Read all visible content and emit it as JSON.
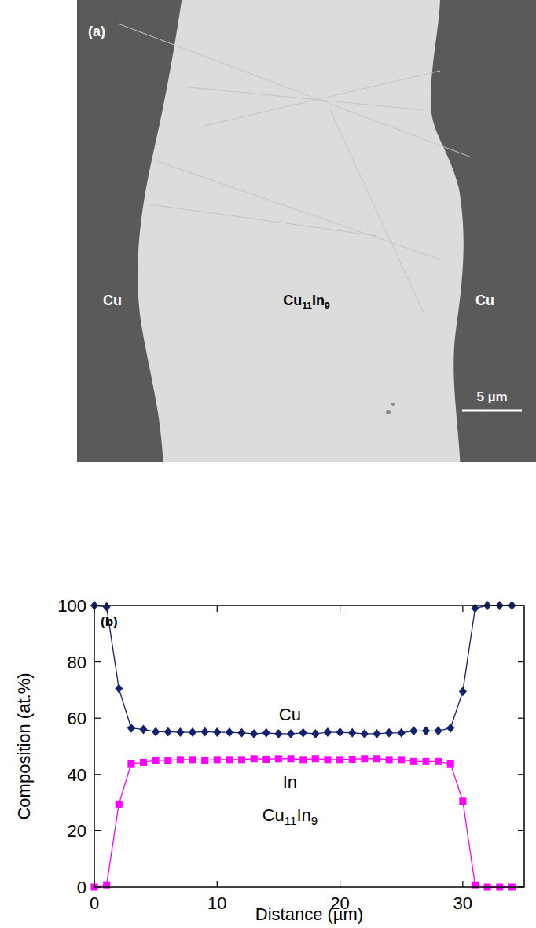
{
  "micrograph": {
    "panel_label": "(a)",
    "labels": [
      "Cu",
      "Cu11In9",
      "Cu"
    ],
    "scale_bar": "5 µm"
  },
  "chart_data": {
    "type": "line",
    "annotations": [
      "(b)",
      "Cu11In9"
    ],
    "x_label": "Distance (µm)",
    "y_label": "Composition (at.%)",
    "x": [
      0,
      1,
      2,
      3,
      4,
      5,
      6,
      7,
      8,
      9,
      10,
      11,
      12,
      13,
      14,
      15,
      16,
      17,
      18,
      19,
      20,
      21,
      22,
      23,
      24,
      25,
      26,
      27,
      28,
      29,
      30,
      31,
      32,
      33,
      34
    ],
    "series": [
      {
        "name": "Cu",
        "color": "#13206b",
        "marker": "diamond",
        "line_style": "solid",
        "values": [
          100,
          99.5,
          70.5,
          56.5,
          56,
          55.2,
          55.2,
          55,
          55,
          55.2,
          55,
          55,
          54.8,
          54.5,
          54.8,
          54.5,
          54.5,
          54.8,
          54.5,
          55,
          55,
          54.8,
          54.5,
          54.5,
          54.8,
          54.8,
          55.5,
          55.5,
          55.5,
          56.5,
          69.5,
          99,
          100,
          100,
          100
        ]
      },
      {
        "name": "In",
        "color": "#ff00ff",
        "marker": "square",
        "line_style": "solid",
        "values": [
          0,
          0.8,
          29.5,
          43.8,
          44.3,
          45,
          45,
          45.3,
          45.3,
          45,
          45.3,
          45.3,
          45.3,
          45.6,
          45.4,
          45.6,
          45.6,
          45.3,
          45.6,
          45.3,
          45.3,
          45.4,
          45.6,
          45.6,
          45.3,
          45.3,
          44.6,
          44.6,
          44.6,
          43.8,
          30.5,
          0.8,
          0,
          0,
          0
        ]
      }
    ],
    "xlim": [
      0,
      35
    ],
    "xticks": [
      0,
      10,
      20,
      30
    ],
    "ylim": [
      0,
      100
    ],
    "yticks": [
      0,
      20,
      40,
      60,
      80,
      100
    ],
    "grid": false
  }
}
